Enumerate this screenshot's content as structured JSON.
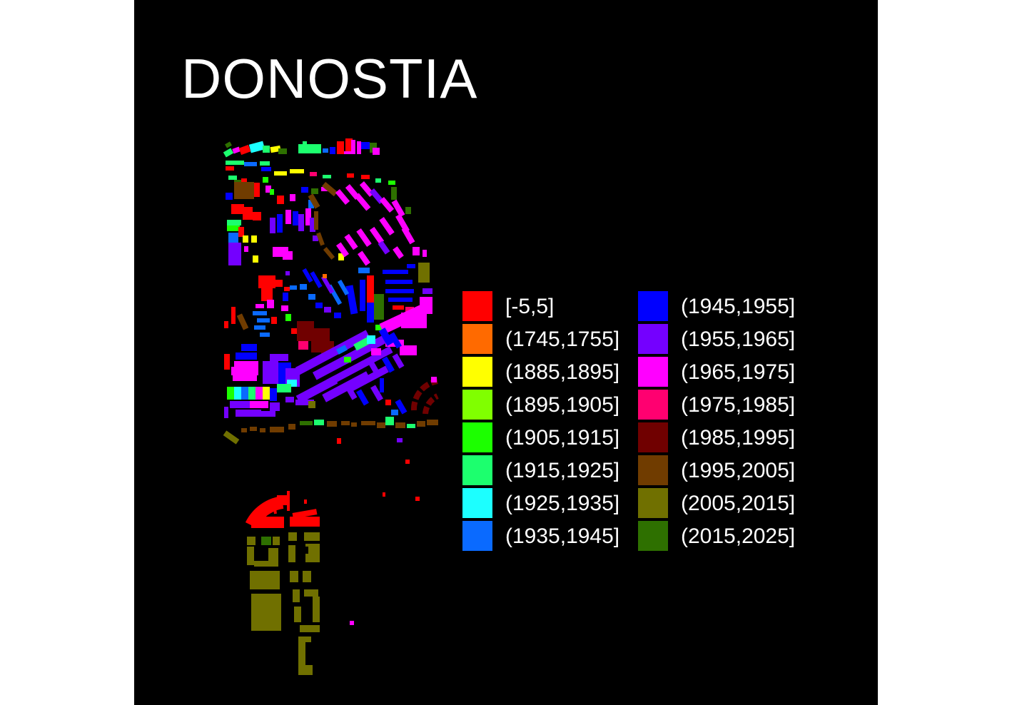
{
  "title": "DONOSTIA",
  "legend": {
    "items": [
      {
        "label": "[-5,5]",
        "color": "#FF0000"
      },
      {
        "label": "(1745,1755]",
        "color": "#FF6A00"
      },
      {
        "label": "(1885,1895]",
        "color": "#FFFF00"
      },
      {
        "label": "(1895,1905]",
        "color": "#80FF00"
      },
      {
        "label": "(1905,1915]",
        "color": "#1CFF00"
      },
      {
        "label": "(1915,1925]",
        "color": "#1CFF6E"
      },
      {
        "label": "(1925,1935]",
        "color": "#1CFFFF"
      },
      {
        "label": "(1935,1945]",
        "color": "#0A6AFF"
      },
      {
        "label": "(1945,1955]",
        "color": "#0000FF"
      },
      {
        "label": "(1955,1965]",
        "color": "#7400FF"
      },
      {
        "label": "(1965,1975]",
        "color": "#FF00FF"
      },
      {
        "label": "(1975,1985]",
        "color": "#FF0070"
      },
      {
        "label": "(1985,1995]",
        "color": "#700000"
      },
      {
        "label": "(1995,2005]",
        "color": "#703C00"
      },
      {
        "label": "(2005,2015]",
        "color": "#707000"
      },
      {
        "label": "(2015,2025]",
        "color": "#2E7000"
      }
    ]
  },
  "colors": {
    "background": "#000000",
    "title": "#FFFFFF",
    "label": "#FFFFFF"
  }
}
